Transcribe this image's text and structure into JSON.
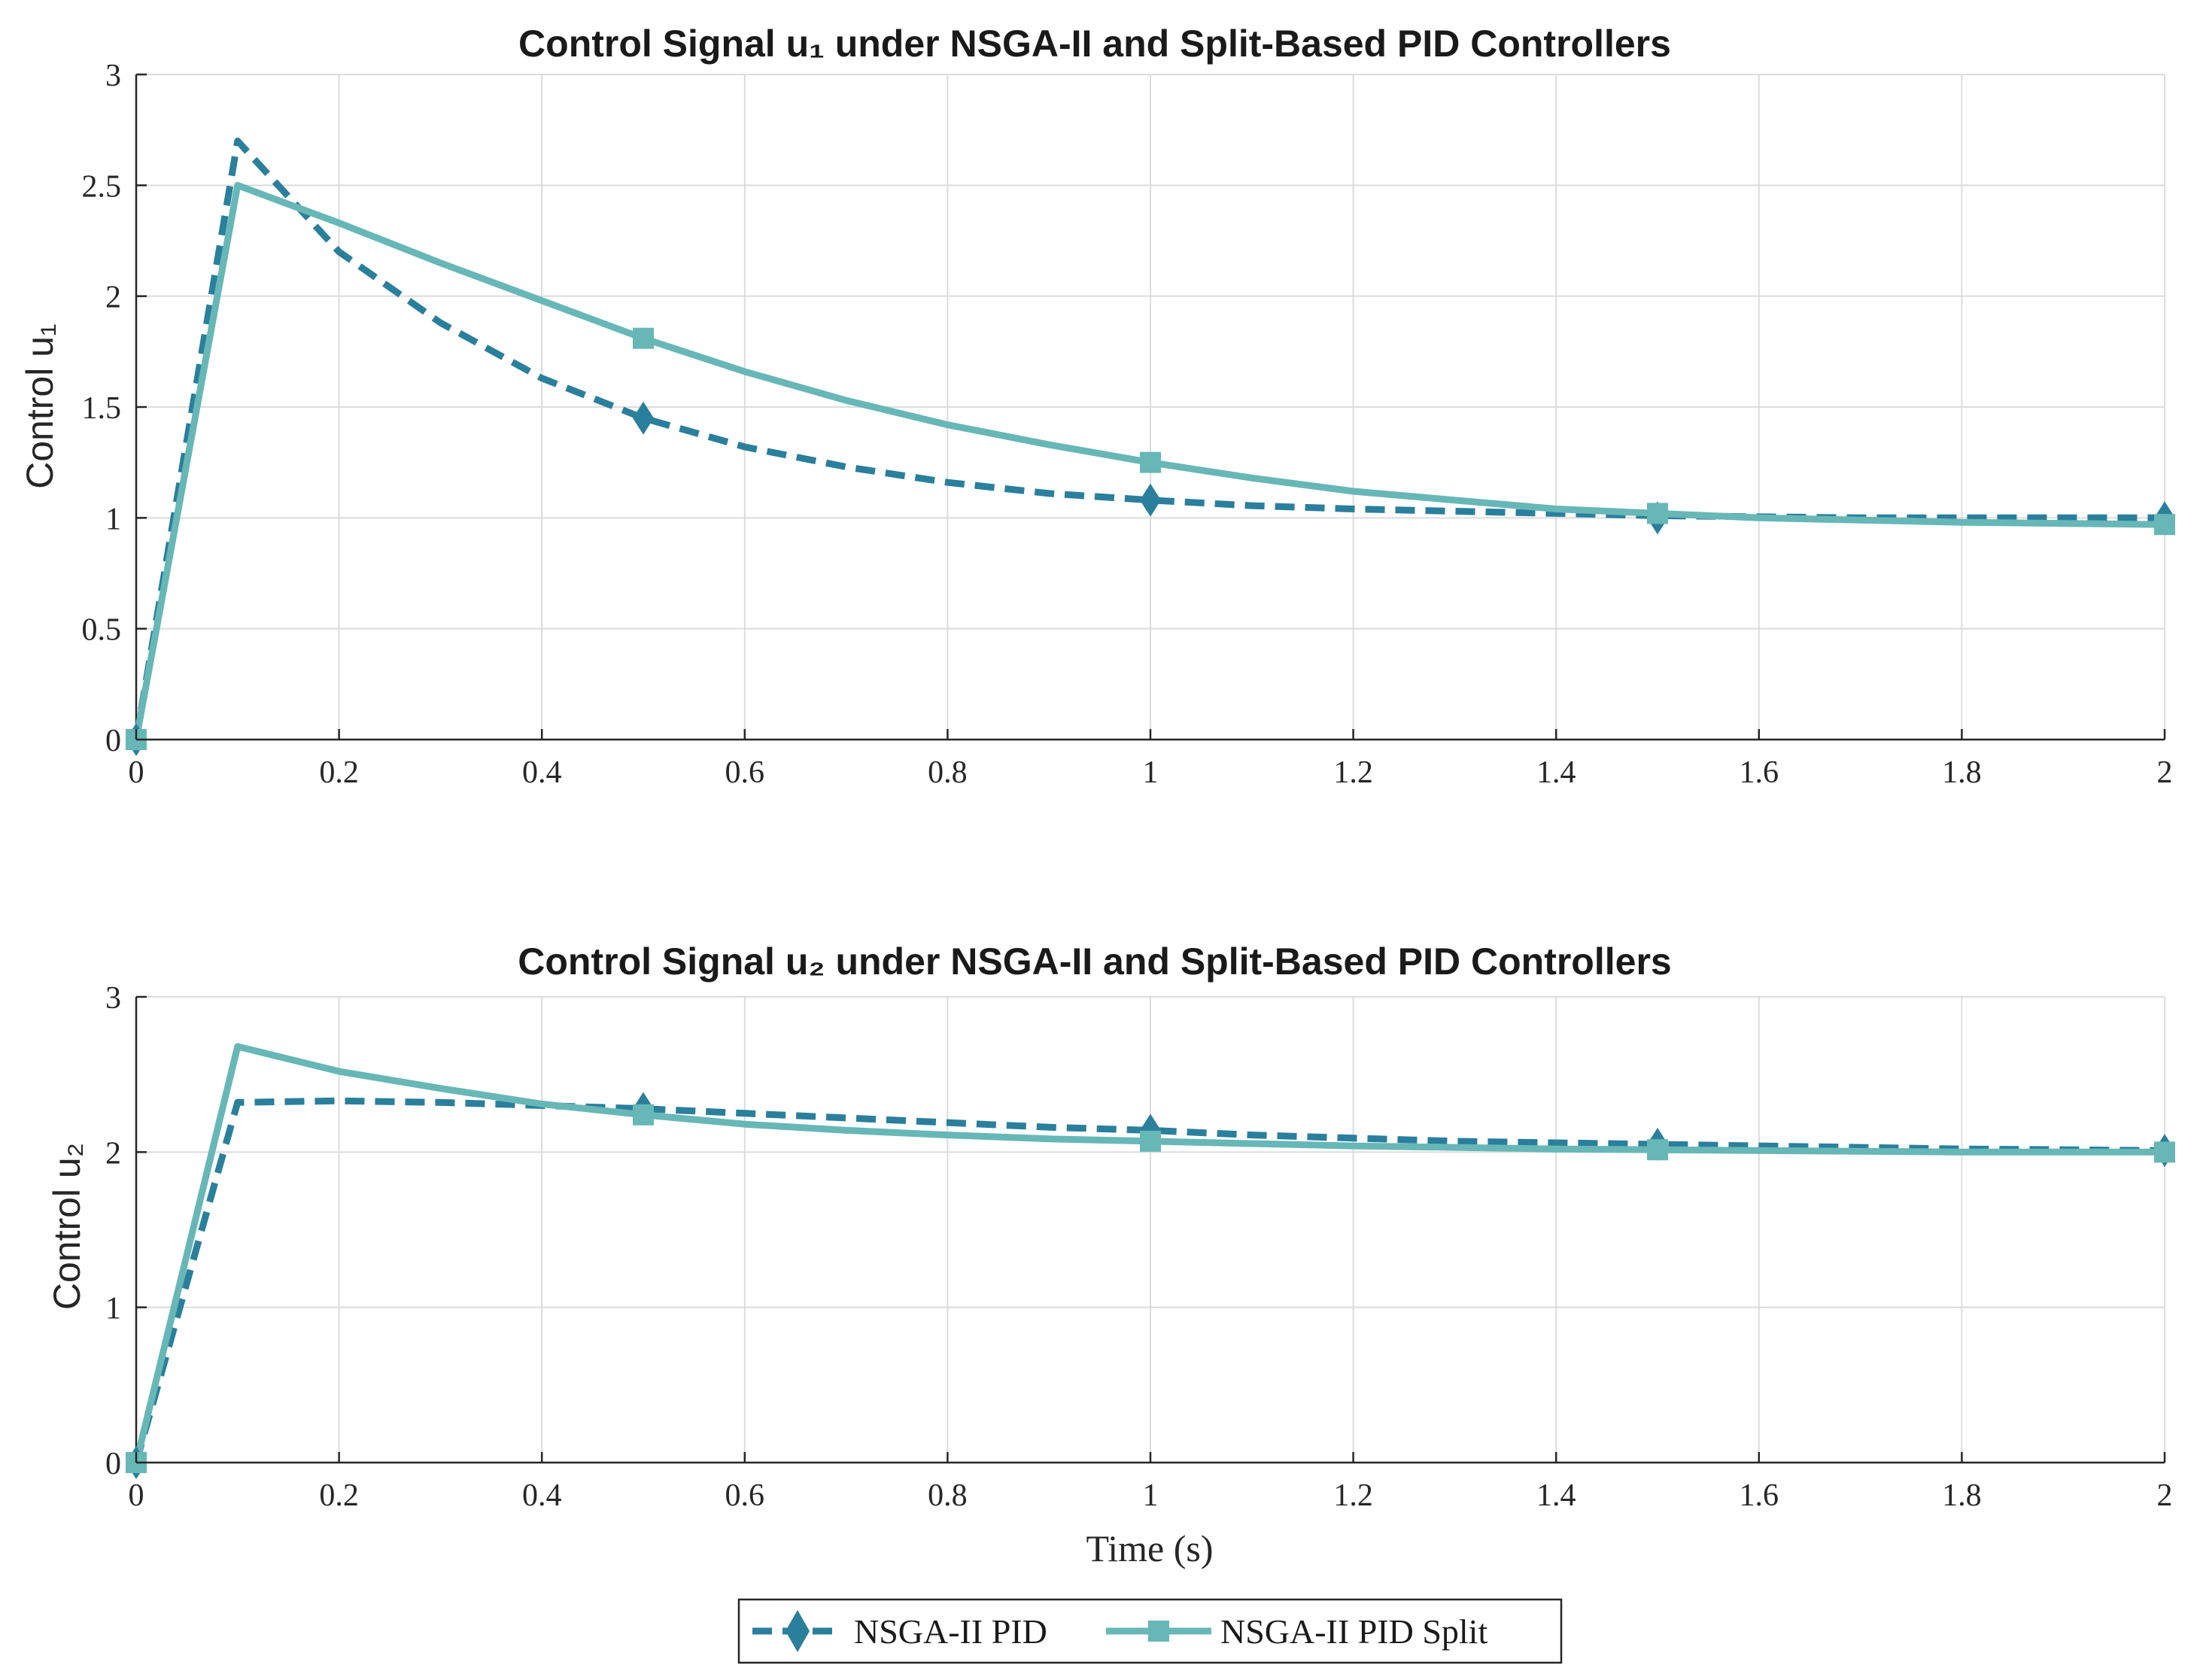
{
  "colors": {
    "pid": "#2a7f9c",
    "split": "#67b7b7"
  },
  "chart_data": [
    {
      "type": "line",
      "title": "Control Signal u₁ under NSGA-II and Split-Based PID Controllers",
      "xlabel": "",
      "ylabel": "Control u₁",
      "xlim": [
        0,
        2
      ],
      "ylim": [
        0,
        3
      ],
      "xticks": [
        0,
        0.2,
        0.4,
        0.6,
        0.8,
        1,
        1.2,
        1.4,
        1.6,
        1.8,
        2
      ],
      "xtick_labels": [
        "0",
        "0.2",
        "0.4",
        "0.6",
        "0.8",
        "1",
        "1.2",
        "1.4",
        "1.6",
        "1.8",
        "2"
      ],
      "yticks": [
        0,
        0.5,
        1,
        1.5,
        2,
        2.5,
        3
      ],
      "ytick_labels": [
        "0",
        "0.5",
        "1",
        "1.5",
        "2",
        "2.5",
        "3"
      ],
      "grid": true,
      "series": [
        {
          "name": "NSGA-II PID",
          "style": "dashed",
          "marker": "diamond",
          "x": [
            0,
            0.1,
            0.2,
            0.3,
            0.4,
            0.5,
            0.6,
            0.7,
            0.8,
            0.9,
            1.0,
            1.1,
            1.2,
            1.3,
            1.4,
            1.5,
            1.6,
            1.7,
            1.8,
            1.9,
            2.0
          ],
          "y": [
            0,
            2.7,
            2.2,
            1.88,
            1.63,
            1.45,
            1.32,
            1.23,
            1.16,
            1.11,
            1.08,
            1.055,
            1.04,
            1.03,
            1.02,
            1.01,
            1.005,
            1.0,
            1.0,
            1.0,
            1.0
          ],
          "marker_x": [
            0,
            0.5,
            1,
            1.5,
            2
          ],
          "marker_y": [
            0,
            1.45,
            1.08,
            1.0,
            1.0
          ]
        },
        {
          "name": "NSGA-II PID Split",
          "style": "solid",
          "marker": "square",
          "x": [
            0,
            0.1,
            0.2,
            0.3,
            0.4,
            0.5,
            0.6,
            0.7,
            0.8,
            0.9,
            1.0,
            1.1,
            1.2,
            1.3,
            1.4,
            1.5,
            1.6,
            1.7,
            1.8,
            1.9,
            2.0
          ],
          "y": [
            0,
            2.5,
            2.33,
            2.15,
            1.98,
            1.81,
            1.66,
            1.53,
            1.42,
            1.33,
            1.25,
            1.18,
            1.12,
            1.08,
            1.04,
            1.02,
            1.0,
            0.99,
            0.98,
            0.975,
            0.97
          ],
          "marker_x": [
            0,
            0.5,
            1,
            1.5,
            2
          ],
          "marker_y": [
            0,
            1.81,
            1.25,
            1.02,
            0.97
          ]
        }
      ]
    },
    {
      "type": "line",
      "title": "Control Signal u₂ under NSGA-II and Split-Based PID Controllers",
      "xlabel": "Time (s)",
      "ylabel": "Control u₂",
      "xlim": [
        0,
        2
      ],
      "ylim": [
        0,
        3
      ],
      "xticks": [
        0,
        0.2,
        0.4,
        0.6,
        0.8,
        1,
        1.2,
        1.4,
        1.6,
        1.8,
        2
      ],
      "xtick_labels": [
        "0",
        "0.2",
        "0.4",
        "0.6",
        "0.8",
        "1",
        "1.2",
        "1.4",
        "1.6",
        "1.8",
        "2"
      ],
      "yticks": [
        0,
        1,
        2,
        3
      ],
      "ytick_labels": [
        "0",
        "1",
        "2",
        "3"
      ],
      "grid": true,
      "series": [
        {
          "name": "NSGA-II PID",
          "style": "dashed",
          "marker": "diamond",
          "x": [
            0,
            0.1,
            0.2,
            0.3,
            0.4,
            0.5,
            0.6,
            0.7,
            0.8,
            0.9,
            1.0,
            1.1,
            1.2,
            1.3,
            1.4,
            1.5,
            1.6,
            1.7,
            1.8,
            1.9,
            2.0
          ],
          "y": [
            0,
            2.32,
            2.33,
            2.32,
            2.3,
            2.28,
            2.25,
            2.22,
            2.19,
            2.16,
            2.14,
            2.11,
            2.09,
            2.07,
            2.06,
            2.05,
            2.04,
            2.03,
            2.02,
            2.015,
            2.01
          ],
          "marker_x": [
            0,
            0.5,
            1,
            1.5,
            2
          ],
          "marker_y": [
            0,
            2.28,
            2.14,
            2.05,
            2.01
          ]
        },
        {
          "name": "NSGA-II PID Split",
          "style": "solid",
          "marker": "square",
          "x": [
            0,
            0.1,
            0.2,
            0.3,
            0.4,
            0.5,
            0.6,
            0.7,
            0.8,
            0.9,
            1.0,
            1.1,
            1.2,
            1.3,
            1.4,
            1.5,
            1.6,
            1.7,
            1.8,
            1.9,
            2.0
          ],
          "y": [
            0,
            2.68,
            2.52,
            2.41,
            2.31,
            2.24,
            2.18,
            2.14,
            2.11,
            2.085,
            2.07,
            2.055,
            2.04,
            2.03,
            2.02,
            2.015,
            2.01,
            2.005,
            2.0,
            2.0,
            2.0
          ],
          "marker_x": [
            0,
            0.5,
            1,
            1.5,
            2
          ],
          "marker_y": [
            0,
            2.24,
            2.07,
            2.015,
            2.0
          ]
        }
      ]
    }
  ],
  "legend": {
    "placement": "bottom-center",
    "entries": [
      "NSGA-II PID",
      "NSGA-II PID Split"
    ]
  }
}
